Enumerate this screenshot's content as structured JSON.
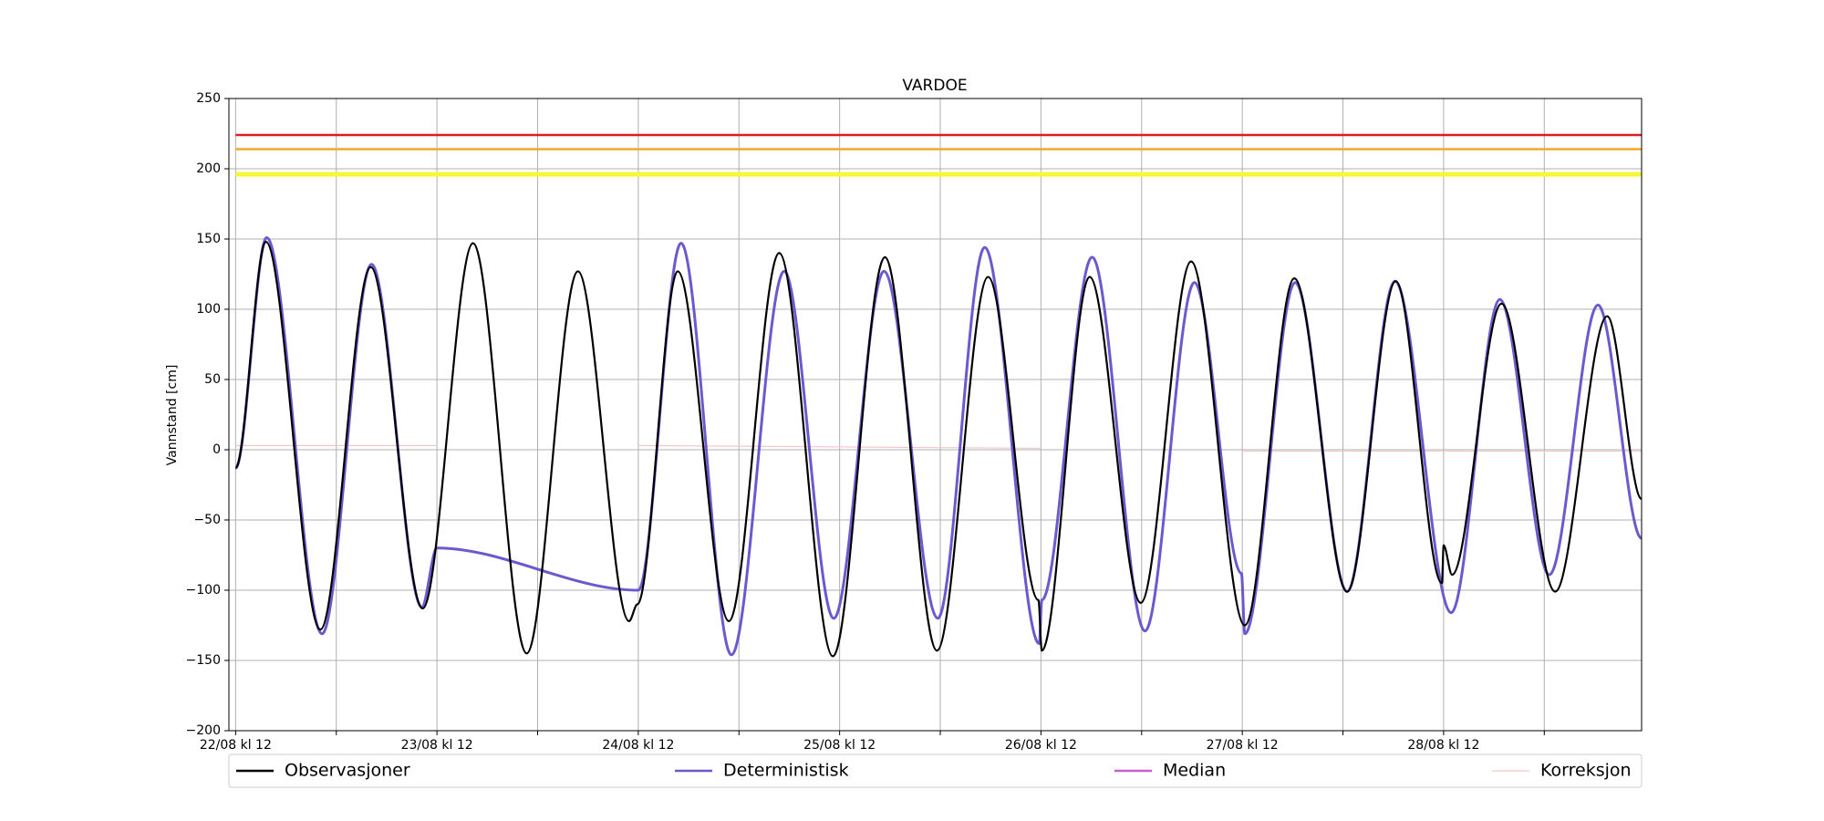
{
  "chart_data": {
    "type": "line",
    "title": "VARDOE",
    "y_label": "Vannstand [cm]",
    "xlim": [
      -0.8,
      167.6
    ],
    "ylim": [
      -200,
      250
    ],
    "xticks": [
      {
        "value": 0,
        "label": "22/08 kl 12"
      },
      {
        "value": 24,
        "label": "23/08 kl 12"
      },
      {
        "value": 48,
        "label": "24/08 kl 12"
      },
      {
        "value": 72,
        "label": "25/08 kl 12"
      },
      {
        "value": 96,
        "label": "26/08 kl 12"
      },
      {
        "value": 120,
        "label": "27/08 kl 12"
      },
      {
        "value": 144,
        "label": "28/08 kl 12"
      }
    ],
    "xticks_minor": [
      12,
      36,
      60,
      84,
      108,
      132,
      156
    ],
    "yticks": [
      {
        "value": -200,
        "label": "−200"
      },
      {
        "value": -150,
        "label": "−150"
      },
      {
        "value": -100,
        "label": "−100"
      },
      {
        "value": -50,
        "label": "−50"
      },
      0,
      50,
      100,
      150,
      200,
      250
    ],
    "grid": true,
    "thresholds": {
      "values": [
        224,
        214,
        196
      ],
      "colors": [
        "#e41a1c",
        "#f5a623",
        "#f7f73a"
      ]
    },
    "series": [
      {
        "name": "Observasjoner",
        "color": "#000000",
        "x": [
          0,
          3.6,
          10.1,
          16.1,
          22.3,
          28.3,
          34.7,
          40.8,
          46.9,
          47.9,
          52.7,
          58.8,
          64.8,
          71.2,
          77.4,
          83.6,
          89.7,
          95.7,
          96.1,
          101.8,
          107.9,
          113.9,
          120.3,
          126.2,
          132.5,
          138.3,
          143.8,
          144.0,
          145.0,
          150.9,
          157.3,
          163.5,
          167.6
        ],
        "values": [
          -13,
          148,
          -128,
          130,
          -113,
          147,
          -145,
          127,
          -122,
          -110,
          127,
          -122,
          140,
          -147,
          137,
          -143,
          123,
          -107,
          -143,
          123,
          -109,
          134,
          -125,
          122,
          -101,
          120,
          -95,
          -68,
          -89,
          104,
          -101,
          95,
          -35
        ]
      },
      {
        "name": "Deterministisk",
        "color": "#6a5acd",
        "x": [
          0,
          3.7,
          10.3,
          16.2,
          22.2,
          24,
          48,
          53.1,
          59.1,
          65.4,
          71.3,
          77.3,
          83.7,
          89.3,
          95.8,
          96.1,
          102.1,
          108.4,
          114.3,
          119.9,
          120.3,
          126.3,
          132.5,
          138.2,
          144.9,
          150.7,
          156.6,
          162.4,
          167.6
        ],
        "values": [
          -13,
          151,
          -131,
          132,
          -112,
          -70,
          -100,
          147,
          -146,
          127,
          -120,
          127,
          -120,
          144,
          -138,
          -107,
          137,
          -129,
          119,
          -88,
          -131,
          119,
          -101,
          120,
          -116,
          107,
          -89,
          103,
          -63
        ]
      },
      {
        "name": "Median",
        "color": "#c95fd6",
        "x": [],
        "values": []
      },
      {
        "name": "Korreksjon",
        "color": "#f4c6c6",
        "x": [
          0,
          24,
          36,
          48,
          72,
          96,
          108,
          120,
          167.6
        ],
        "values": [
          3,
          3,
          null,
          3,
          2,
          1,
          null,
          -1,
          -1
        ]
      }
    ],
    "legend": "bottom"
  }
}
